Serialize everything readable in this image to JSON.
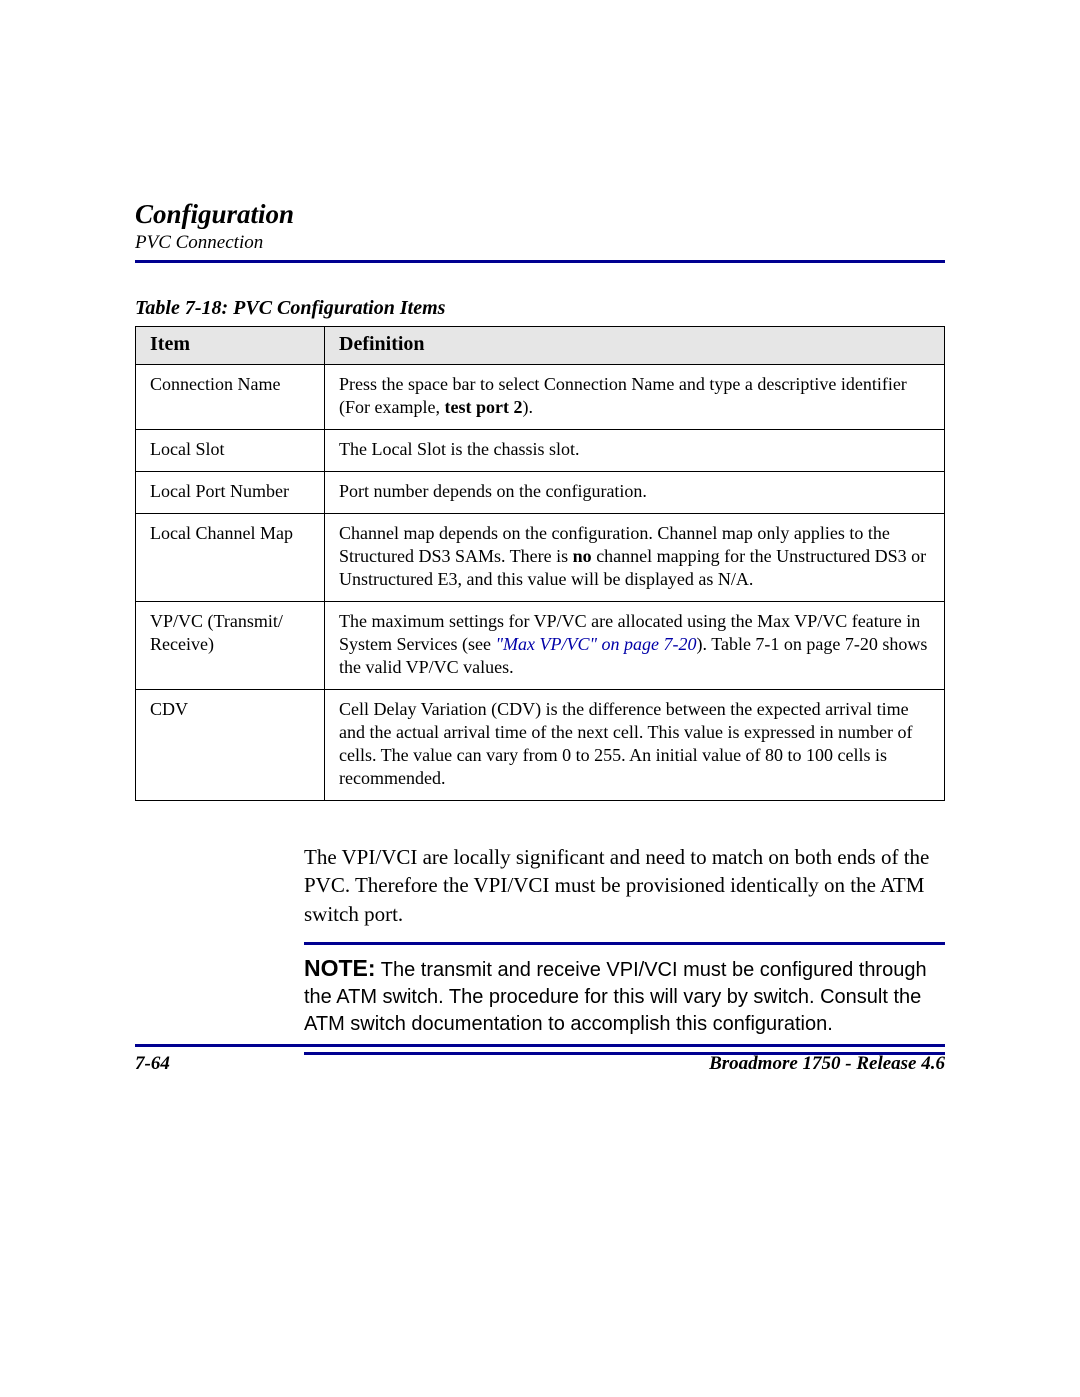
{
  "colors": {
    "rule": "#000090",
    "link": "#0000a8",
    "header_bg": "#e6e6e6",
    "text": "#000000",
    "background": "#ffffff"
  },
  "header": {
    "title": "Configuration",
    "subtitle": "PVC Connection"
  },
  "table": {
    "caption": "Table 7-18: PVC Configuration Items",
    "columns": [
      "Item",
      "Definition"
    ],
    "rows": [
      {
        "item": "Connection Name",
        "def_pre": "Press the space bar to select Connection Name and type a descriptive identifier (For example, ",
        "def_bold": "test port 2",
        "def_post": ")."
      },
      {
        "item": "Local Slot",
        "def": "The Local Slot is the chassis slot."
      },
      {
        "item": "Local Port Number",
        "def": "Port number depends on the configuration."
      },
      {
        "item": "Local Channel Map",
        "def_pre": "Channel map depends on the configuration. Channel map only applies to the Structured DS3 SAMs. There is ",
        "def_bold": "no",
        "def_post": " channel mapping for the Unstructured DS3 or Unstructured E3, and this value will be displayed as N/A."
      },
      {
        "item": "VP/VC (Transmit/ Receive)",
        "def_pre": "The maximum settings for VP/VC are allocated using the Max VP/VC feature in System Services (see ",
        "def_link": "\"Max VP/VC\" on page 7-20",
        "def_post": "). Table 7-1 on page 7-20 shows the valid VP/VC values."
      },
      {
        "item": "CDV",
        "def": "Cell Delay Variation (CDV) is the difference between the expected arrival time and the actual arrival time of the next cell. This value is expressed in number of cells. The value can vary from 0 to 255. An initial value of 80 to 100 cells is recommended."
      }
    ]
  },
  "body": {
    "para1": "The VPI/VCI are locally significant and need to match on both ends of the PVC. Therefore the VPI/VCI must be provisioned identically on the ATM switch port.",
    "note_label": "NOTE:",
    "note_text": "  The transmit and receive VPI/VCI must be configured through the ATM switch. The procedure for this will vary by switch. Consult the ATM switch documentation to accomplish this configuration."
  },
  "footer": {
    "page": "7-64",
    "product": "Broadmore 1750 - Release 4.6"
  }
}
